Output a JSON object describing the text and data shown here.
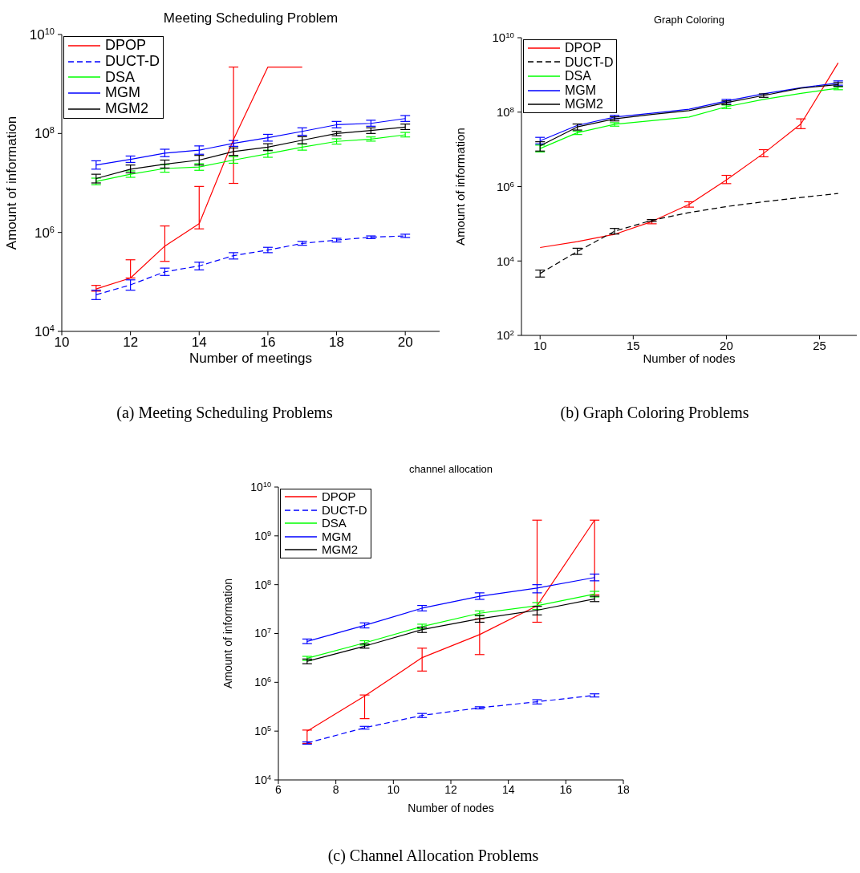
{
  "chart_data": [
    {
      "type": "line",
      "title": "Meeting Scheduling Problem",
      "xlabel": "Number of meetings",
      "ylabel": "Amount of information",
      "annotations": [
        "(a) Meeting Scheduling Problems"
      ],
      "log": "y",
      "legend": "top left",
      "marker": "none",
      "x": [
        11,
        12,
        13,
        14,
        15,
        16,
        17,
        18,
        19,
        20
      ],
      "xlim": [
        10,
        21
      ],
      "xticks": [
        10,
        12,
        14,
        16,
        18,
        20
      ],
      "ylim": [
        10000,
        10000000000
      ],
      "yticks": [
        {
          "value": 10000,
          "label": "10$^{4}$"
        },
        {
          "value": 1000000,
          "label": "10$^{6}$"
        },
        {
          "value": 100000000,
          "label": "10$^{8}$"
        },
        {
          "value": 10000000000,
          "label": "10$^{10}$"
        }
      ],
      "series": [
        {
          "name": "DPOP",
          "color": "#ff0000",
          "line_style": "solid",
          "values": [
            72000,
            120000,
            530000,
            1500000,
            76000000,
            2200000000,
            2200000000,
            null,
            null,
            null
          ],
          "errors": [
            [
              65000,
              85000
            ],
            [
              120000,
              280000
            ],
            [
              260000,
              1350000
            ],
            [
              1180000,
              8500000
            ],
            [
              9800000,
              2200000000
            ],
            null,
            null,
            null,
            null,
            null
          ]
        },
        {
          "name": "DUCT-D",
          "color": "#0000ff",
          "line_style": "dashed",
          "values": [
            55000,
            87000,
            160000,
            210000,
            340000,
            440000,
            600000,
            700000,
            800000,
            850000
          ],
          "errors": [
            [
              44000,
              68000
            ],
            [
              68000,
              110000
            ],
            [
              135000,
              190000
            ],
            [
              175000,
              250000
            ],
            [
              290000,
              390000
            ],
            [
              390000,
              500000
            ],
            [
              550000,
              660000
            ],
            [
              640000,
              760000
            ],
            [
              750000,
              850000
            ],
            [
              790000,
              920000
            ]
          ]
        },
        {
          "name": "DSA",
          "color": "#00ff00",
          "line_style": "solid",
          "values": [
            10700000,
            15000000,
            19600000,
            21000000,
            29000000,
            39000000,
            53000000,
            69000000,
            77000000,
            94000000
          ],
          "errors": [
            [
              9200000,
              12500000
            ],
            [
              13000000,
              17500000
            ],
            [
              16500000,
              23500000
            ],
            [
              18000000,
              24500000
            ],
            [
              25000000,
              34000000
            ],
            [
              33000000,
              46000000
            ],
            [
              46000000,
              61000000
            ],
            [
              61000000,
              78000000
            ],
            [
              70000000,
              85000000
            ],
            [
              85000000,
              105000000
            ]
          ]
        },
        {
          "name": "MGM",
          "color": "#0000ff",
          "line_style": "solid",
          "values": [
            23000000,
            30000000,
            40000000,
            46000000,
            63000000,
            82000000,
            110000000,
            150000000,
            160000000,
            200000000
          ],
          "errors": [
            [
              19000000,
              28000000
            ],
            [
              26000000,
              35000000
            ],
            [
              34000000,
              48000000
            ],
            [
              38000000,
              56000000
            ],
            [
              55000000,
              72000000
            ],
            [
              70000000,
              96000000
            ],
            [
              92000000,
              130000000
            ],
            [
              130000000,
              175000000
            ],
            [
              140000000,
              185000000
            ],
            [
              175000000,
              230000000
            ]
          ]
        },
        {
          "name": "MGM2",
          "color": "#000000",
          "line_style": "solid",
          "values": [
            12300000,
            19000000,
            24000000,
            29000000,
            43000000,
            53000000,
            73000000,
            100000000,
            115000000,
            135000000
          ],
          "errors": [
            [
              10000000,
              15000000
            ],
            [
              16000000,
              23000000
            ],
            [
              20000000,
              29000000
            ],
            [
              23000000,
              36000000
            ],
            [
              36000000,
              51000000
            ],
            [
              45000000,
              62000000
            ],
            [
              62000000,
              86000000
            ],
            [
              90000000,
              110000000
            ],
            [
              100000000,
              130000000
            ],
            [
              120000000,
              155000000
            ]
          ]
        }
      ]
    },
    {
      "type": "line",
      "title": "Graph Coloring",
      "xlabel": "Number of nodes",
      "ylabel": "Amount of information",
      "annotations": [
        "(b) Graph Coloring Problems"
      ],
      "log": "y",
      "legend": "top left",
      "marker": "none",
      "x": [
        10,
        12,
        14,
        16,
        18,
        20,
        22,
        24,
        26
      ],
      "xlim": [
        9,
        27
      ],
      "xticks": [
        10,
        15,
        20,
        25
      ],
      "ylim": [
        100,
        10000000000
      ],
      "yticks": [
        {
          "value": 100,
          "label": "10$^{2}$"
        },
        {
          "value": 10000,
          "label": "10$^{4}$"
        },
        {
          "value": 1000000,
          "label": "10$^{6}$"
        },
        {
          "value": 100000000,
          "label": "10$^{8}$"
        },
        {
          "value": 10000000000,
          "label": "10$^{10}$"
        }
      ],
      "series": [
        {
          "name": "DPOP",
          "color": "#ff0000",
          "line_style": "solid",
          "values": [
            23000,
            33000,
            52000,
            115000,
            330000,
            1500000,
            7800000,
            48000000,
            2100000000
          ],
          "errors": [
            null,
            null,
            null,
            [
              100000,
              130000
            ],
            [
              280000,
              390000
            ],
            [
              1200000,
              2000000
            ],
            [
              6300000,
              9800000
            ],
            [
              36000000,
              66000000
            ],
            null
          ]
        },
        {
          "name": "DUCT-D",
          "color": "#000000",
          "line_style": "dashed",
          "values": [
            4600,
            18000,
            63000,
            124000,
            200000,
            290000,
            390000,
            510000,
            650000
          ],
          "errors": [
            [
              3700,
              5700
            ],
            [
              15000,
              22000
            ],
            [
              53000,
              75000
            ],
            [
              115000,
              130000
            ],
            null,
            null,
            null,
            null,
            null
          ]
        },
        {
          "name": "DSA",
          "color": "#00ff00",
          "line_style": "solid",
          "values": [
            10500000,
            28000000,
            47000000,
            59000000,
            74000000,
            140000000,
            220000000,
            320000000,
            440000000
          ],
          "errors": [
            [
              8500000,
              13000000
            ],
            [
              25000000,
              31000000
            ],
            [
              42000000,
              52000000
            ],
            null,
            null,
            [
              125000000,
              155000000
            ],
            null,
            null,
            [
              400000000,
              480000000
            ]
          ]
        },
        {
          "name": "MGM",
          "color": "#0000ff",
          "line_style": "solid",
          "values": [
            17000000,
            44000000,
            74000000,
            93000000,
            120000000,
            200000000,
            310000000,
            450000000,
            610000000
          ],
          "errors": [
            [
              14000000,
              21000000
            ],
            null,
            [
              66000000,
              82000000
            ],
            null,
            null,
            [
              180000000,
              220000000
            ],
            null,
            null,
            [
              530000000,
              690000000
            ]
          ]
        },
        {
          "name": "MGM2",
          "color": "#000000",
          "line_style": "solid",
          "values": [
            12400000,
            40000000,
            66000000,
            87000000,
            110000000,
            180000000,
            280000000,
            440000000,
            550000000
          ],
          "errors": [
            [
              9000000,
              16000000
            ],
            [
              33000000,
              48000000
            ],
            [
              58000000,
              75000000
            ],
            null,
            null,
            [
              160000000,
              200000000
            ],
            [
              250000000,
              310000000
            ],
            null,
            [
              490000000,
              620000000
            ]
          ]
        }
      ]
    },
    {
      "type": "line",
      "title": "channel allocation",
      "xlabel": "Number of nodes",
      "ylabel": "Amount of information",
      "annotations": [
        "(c) Channel Allocation Problems"
      ],
      "log": "y",
      "legend": "top left",
      "marker": "none",
      "x": [
        7,
        9,
        11,
        13,
        15,
        17
      ],
      "xlim": [
        6,
        18
      ],
      "xticks": [
        6,
        8,
        10,
        12,
        14,
        16,
        18
      ],
      "ylim": [
        10000,
        10000000000
      ],
      "yticks": [
        {
          "value": 10000,
          "label": "10$^{4}$"
        },
        {
          "value": 100000,
          "label": "10$^{5}$"
        },
        {
          "value": 1000000,
          "label": "10$^{6}$"
        },
        {
          "value": 10000000,
          "label": "10$^{7}$"
        },
        {
          "value": 100000000,
          "label": "10$^{8}$"
        },
        {
          "value": 1000000000,
          "label": "10$^{9}$"
        },
        {
          "value": 10000000000,
          "label": "10$^{10}$"
        }
      ],
      "series": [
        {
          "name": "DPOP",
          "color": "#ff0000",
          "line_style": "solid",
          "values": [
            100000,
            520000,
            3200000,
            9500000,
            37000000,
            2100000000
          ],
          "errors": [
            [
              56000,
              105000
            ],
            [
              180000,
              550000
            ],
            [
              1700000,
              5000000
            ],
            [
              3700000,
              20000000
            ],
            [
              17000000,
              2100000000
            ],
            [
              62000000,
              2100000000
            ]
          ]
        },
        {
          "name": "DUCT-D",
          "color": "#0000ff",
          "line_style": "dashed",
          "values": [
            57000,
            117000,
            210000,
            300000,
            400000,
            540000
          ],
          "errors": [
            [
              54000,
              60000
            ],
            [
              110000,
              125000
            ],
            [
              190000,
              230000
            ],
            [
              285000,
              315000
            ],
            [
              360000,
              440000
            ],
            [
              500000,
              580000
            ]
          ]
        },
        {
          "name": "DSA",
          "color": "#00ff00",
          "line_style": "solid",
          "values": [
            3100000,
            6400000,
            13900000,
            26000000,
            37000000,
            64000000
          ],
          "errors": [
            [
              2800000,
              3400000
            ],
            [
              5800000,
              7100000
            ],
            [
              12500000,
              15500000
            ],
            [
              23000000,
              29000000
            ],
            [
              31000000,
              43000000
            ],
            [
              56000000,
              73000000
            ]
          ]
        },
        {
          "name": "MGM",
          "color": "#0000ff",
          "line_style": "solid",
          "values": [
            6900000,
            14700000,
            33000000,
            58000000,
            85000000,
            140000000
          ],
          "errors": [
            [
              6200000,
              7700000
            ],
            [
              13000000,
              16500000
            ],
            [
              29000000,
              37500000
            ],
            [
              50000000,
              68000000
            ],
            [
              68000000,
              100000000
            ],
            [
              120000000,
              165000000
            ]
          ]
        },
        {
          "name": "MGM2",
          "color": "#000000",
          "line_style": "solid",
          "values": [
            2700000,
            5500000,
            12000000,
            20000000,
            30000000,
            51000000
          ],
          "errors": [
            [
              2400000,
              3000000
            ],
            [
              5000000,
              6100000
            ],
            [
              10500000,
              13500000
            ],
            [
              17000000,
              23500000
            ],
            [
              24000000,
              36000000
            ],
            [
              45000000,
              58000000
            ]
          ]
        }
      ]
    }
  ]
}
